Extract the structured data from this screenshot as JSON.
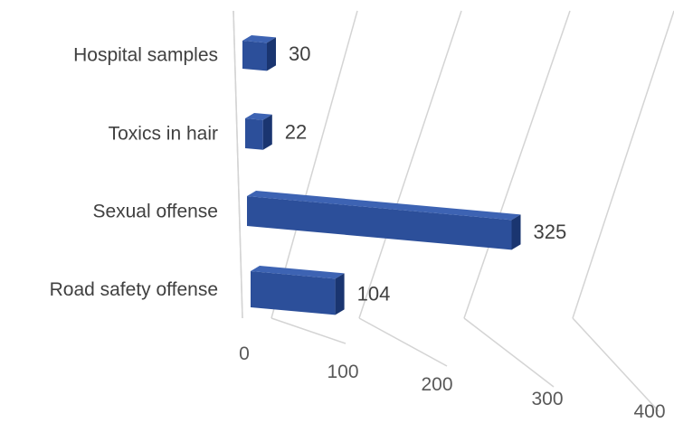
{
  "chart_data": {
    "type": "bar",
    "orientation": "horizontal",
    "style": "3d-perspective",
    "categories": [
      "Hospital samples",
      "Toxics in hair",
      "Sexual offense",
      "Road safety offense"
    ],
    "values": [
      30,
      22,
      325,
      104
    ],
    "data_labels": [
      "30",
      "22",
      "325",
      "104"
    ],
    "x_ticks": [
      0,
      100,
      200,
      300,
      400
    ],
    "x_tick_labels": [
      "0",
      "100",
      "200",
      "300",
      "400"
    ],
    "xlim": [
      0,
      400
    ],
    "title": "",
    "xlabel": "",
    "ylabel": "",
    "grid": true,
    "legend": "none",
    "colors": {
      "bar_front": "#2c4f9a",
      "bar_top": "#3d63b3",
      "bar_side": "#1a3570",
      "grid": "#d4d4d4",
      "text": "#404040"
    }
  }
}
